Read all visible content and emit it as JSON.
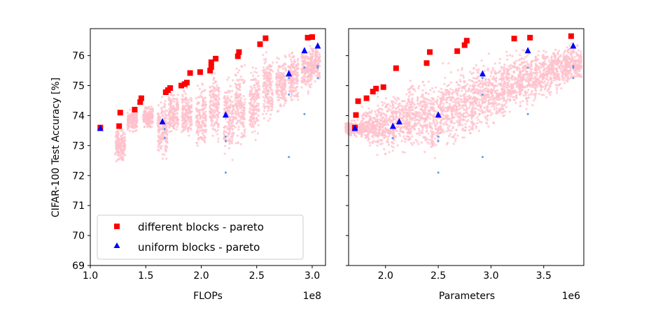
{
  "chart_data": [
    {
      "type": "scatter",
      "ylabel": "CIFAR-100 Test Accuracy [%]",
      "xlabel": "FLOPs",
      "x_offset_label": "1e8",
      "xlim": [
        1.0,
        3.12
      ],
      "ylim": [
        69,
        76.9
      ],
      "xticks": [
        "1.0",
        "1.5",
        "2.0",
        "2.5",
        "3.0"
      ],
      "yticks": [
        "69",
        "70",
        "71",
        "72",
        "73",
        "74",
        "75",
        "76"
      ],
      "legend": {
        "placement": "lower-left",
        "entries": [
          "different blocks - pareto",
          "uniform blocks - pareto"
        ]
      },
      "background_clusters_note_colors": {
        "cloud": "#ffc0cb",
        "uniform_samples": "#6495ed"
      },
      "clusters": [
        {
          "x": 1.27,
          "y_min": 72.3,
          "y_max": 73.7
        },
        {
          "x": 1.38,
          "y_min": 73.4,
          "y_max": 74.3
        },
        {
          "x": 1.52,
          "y_min": 73.5,
          "y_max": 74.4
        },
        {
          "x": 1.65,
          "y_min": 72.2,
          "y_max": 74.8
        },
        {
          "x": 1.75,
          "y_min": 73.1,
          "y_max": 75.0
        },
        {
          "x": 1.87,
          "y_min": 73.0,
          "y_max": 75.1
        },
        {
          "x": 2.0,
          "y_min": 72.6,
          "y_max": 75.4
        },
        {
          "x": 2.12,
          "y_min": 72.8,
          "y_max": 75.8
        },
        {
          "x": 2.25,
          "y_min": 72.3,
          "y_max": 75.6
        },
        {
          "x": 2.35,
          "y_min": 72.6,
          "y_max": 76.0
        },
        {
          "x": 2.48,
          "y_min": 73.0,
          "y_max": 76.0
        },
        {
          "x": 2.6,
          "y_min": 73.5,
          "y_max": 76.3
        },
        {
          "x": 2.72,
          "y_min": 73.9,
          "y_max": 76.2
        },
        {
          "x": 2.83,
          "y_min": 74.2,
          "y_max": 76.4
        },
        {
          "x": 2.95,
          "y_min": 74.6,
          "y_max": 76.5
        },
        {
          "x": 3.03,
          "y_min": 75.0,
          "y_max": 76.5
        }
      ],
      "series": [
        {
          "name": "different blocks - pareto",
          "color": "#ff0000",
          "marker": "square",
          "points": [
            [
              1.09,
              73.6
            ],
            [
              1.26,
              73.65
            ],
            [
              1.27,
              74.1
            ],
            [
              1.4,
              74.2
            ],
            [
              1.45,
              74.45
            ],
            [
              1.46,
              74.58
            ],
            [
              1.68,
              74.78
            ],
            [
              1.7,
              74.85
            ],
            [
              1.72,
              74.92
            ],
            [
              1.82,
              75.0
            ],
            [
              1.85,
              75.05
            ],
            [
              1.87,
              75.1
            ],
            [
              1.9,
              75.42
            ],
            [
              1.99,
              75.45
            ],
            [
              2.08,
              75.5
            ],
            [
              2.09,
              75.62
            ],
            [
              2.09,
              75.78
            ],
            [
              2.13,
              75.9
            ],
            [
              2.33,
              75.98
            ],
            [
              2.34,
              76.12
            ],
            [
              2.53,
              76.38
            ],
            [
              2.58,
              76.58
            ],
            [
              2.96,
              76.6
            ],
            [
              3.0,
              76.62
            ]
          ]
        },
        {
          "name": "uniform blocks - pareto",
          "color": "#0000ff",
          "marker": "triangle",
          "points": [
            [
              1.09,
              73.58
            ],
            [
              1.65,
              73.8
            ],
            [
              2.22,
              74.03
            ],
            [
              2.79,
              75.4
            ],
            [
              2.93,
              76.17
            ],
            [
              3.05,
              76.33
            ]
          ]
        },
        {
          "color": "#6495ed",
          "marker": "dot",
          "points": [
            [
              1.67,
              73.55
            ],
            [
              1.67,
              73.25
            ],
            [
              2.22,
              73.3
            ],
            [
              2.22,
              73.15
            ],
            [
              2.22,
              72.1
            ],
            [
              2.79,
              75.25
            ],
            [
              2.79,
              74.7
            ],
            [
              2.79,
              72.62
            ],
            [
              2.93,
              75.6
            ],
            [
              2.93,
              74.05
            ],
            [
              3.05,
              75.65
            ],
            [
              3.05,
              75.6
            ],
            [
              3.05,
              75.25
            ]
          ]
        }
      ]
    },
    {
      "type": "scatter",
      "xlabel": "Parameters",
      "x_offset_label": "1e6",
      "xlim": [
        1.65,
        3.88
      ],
      "ylim": [
        69,
        76.9
      ],
      "xticks": [
        "2.0",
        "2.5",
        "3.0",
        "3.5"
      ],
      "cloud": [
        {
          "x": 1.7,
          "y_min": 73.2,
          "y_max": 73.9
        },
        {
          "x": 1.85,
          "y_min": 72.9,
          "y_max": 74.4
        },
        {
          "x": 2.0,
          "y_min": 72.5,
          "y_max": 74.9
        },
        {
          "x": 2.15,
          "y_min": 72.7,
          "y_max": 75.0
        },
        {
          "x": 2.3,
          "y_min": 72.6,
          "y_max": 75.4
        },
        {
          "x": 2.45,
          "y_min": 72.3,
          "y_max": 75.6
        },
        {
          "x": 2.6,
          "y_min": 72.6,
          "y_max": 75.8
        },
        {
          "x": 2.75,
          "y_min": 72.9,
          "y_max": 76.0
        },
        {
          "x": 2.9,
          "y_min": 73.2,
          "y_max": 76.1
        },
        {
          "x": 3.05,
          "y_min": 73.5,
          "y_max": 76.2
        },
        {
          "x": 3.2,
          "y_min": 73.8,
          "y_max": 76.3
        },
        {
          "x": 3.35,
          "y_min": 74.1,
          "y_max": 76.4
        },
        {
          "x": 3.5,
          "y_min": 74.4,
          "y_max": 76.4
        },
        {
          "x": 3.65,
          "y_min": 74.7,
          "y_max": 76.5
        },
        {
          "x": 3.78,
          "y_min": 75.0,
          "y_max": 76.5
        }
      ],
      "series": [
        {
          "name": "different blocks - pareto",
          "color": "#ff0000",
          "marker": "square",
          "points": [
            [
              1.71,
              73.6
            ],
            [
              1.72,
              74.02
            ],
            [
              1.74,
              74.48
            ],
            [
              1.82,
              74.58
            ],
            [
              1.88,
              74.8
            ],
            [
              1.91,
              74.9
            ],
            [
              1.98,
              74.95
            ],
            [
              2.1,
              75.58
            ],
            [
              2.39,
              75.75
            ],
            [
              2.42,
              76.12
            ],
            [
              2.68,
              76.15
            ],
            [
              2.75,
              76.35
            ],
            [
              2.77,
              76.5
            ],
            [
              3.22,
              76.57
            ],
            [
              3.37,
              76.6
            ],
            [
              3.76,
              76.65
            ]
          ]
        },
        {
          "name": "uniform blocks - pareto",
          "color": "#0000ff",
          "marker": "triangle",
          "points": [
            [
              1.71,
              73.58
            ],
            [
              2.07,
              73.65
            ],
            [
              2.13,
              73.8
            ],
            [
              2.5,
              74.03
            ],
            [
              2.92,
              75.4
            ],
            [
              3.35,
              76.17
            ],
            [
              3.78,
              76.33
            ]
          ]
        },
        {
          "color": "#6495ed",
          "marker": "dot",
          "points": [
            [
              2.07,
              73.25
            ],
            [
              2.5,
              73.3
            ],
            [
              2.5,
              73.15
            ],
            [
              2.5,
              72.1
            ],
            [
              2.92,
              75.25
            ],
            [
              2.92,
              74.7
            ],
            [
              2.92,
              72.62
            ],
            [
              3.35,
              75.6
            ],
            [
              3.35,
              74.05
            ],
            [
              3.78,
              75.65
            ],
            [
              3.78,
              75.6
            ],
            [
              3.78,
              75.25
            ]
          ]
        }
      ]
    }
  ]
}
